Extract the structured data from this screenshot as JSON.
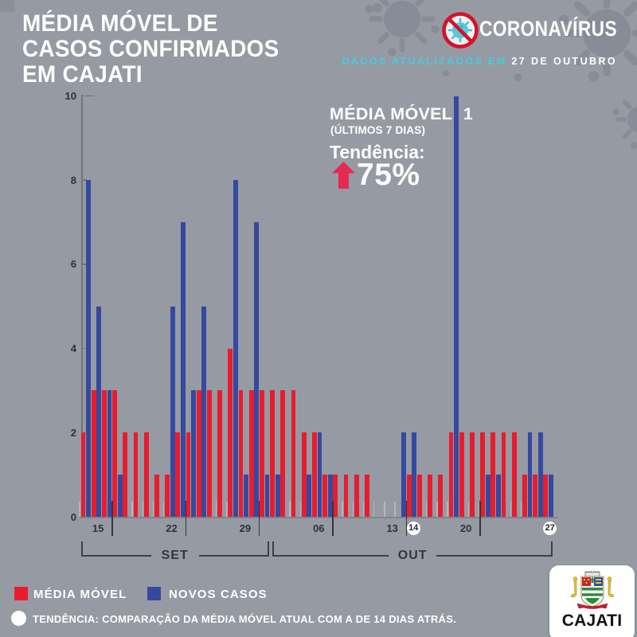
{
  "header": {
    "title_lines": [
      "MÉDIA MÓVEL DE",
      "CASOS CONFIRMADOS",
      "EM CAJATI"
    ],
    "brand": "CORONAVÍRUS",
    "update_prefix": "DADOS ATUALIZADOS EM ",
    "update_date": "27 DE OUTUBRO"
  },
  "stats": {
    "mm_label": "MÉDIA MÓVEL: 1",
    "mm_sub": "(ÚLTIMOS 7 DIAS)",
    "trend_label": "Tendência:",
    "trend_value": "75%",
    "trend_direction": "up"
  },
  "legend": {
    "items": [
      {
        "label": "MÉDIA MÓVEL",
        "color": "#e81c2e"
      },
      {
        "label": "NOVOS CASOS",
        "color": "#35499e"
      }
    ]
  },
  "note": "TENDÊNCIA: COMPARAÇÃO DA MÉDIA MÓVEL ATUAL COM A DE 14 DIAS ATRÁS.",
  "footer_logo": "CAJATI",
  "colors": {
    "background": "#969aa3",
    "media_movel": "#e81c2e",
    "novos_casos": "#35499e",
    "trend_arrow": "#e72850",
    "accent_cyan": "#49cade",
    "nosign_red": "#d6122a"
  },
  "chart_data": {
    "type": "bar",
    "title": "MÉDIA MÓVEL DE CASOS CONFIRMADOS EM CAJATI",
    "ylim": [
      0,
      10
    ],
    "y_ticks": [
      0,
      2,
      4,
      6,
      8,
      10
    ],
    "grid": false,
    "legend_position": "bottom",
    "series": [
      {
        "name": "MÉDIA MÓVEL",
        "color": "#e81c2e",
        "values": [
          2,
          3,
          3,
          3,
          2,
          2,
          2,
          1,
          1,
          2,
          2,
          3,
          3,
          3,
          4,
          3,
          3,
          3,
          3,
          3,
          3,
          2,
          2,
          1,
          1,
          1,
          1,
          1,
          0,
          0,
          0,
          1,
          1,
          1,
          1,
          2,
          2,
          2,
          2,
          2,
          2,
          2,
          1,
          1,
          1
        ]
      },
      {
        "name": "NOVOS CASOS",
        "color": "#35499e",
        "values": [
          8,
          5,
          3,
          1,
          0,
          0,
          0,
          0,
          5,
          7,
          3,
          5,
          0,
          0,
          8,
          1,
          7,
          1,
          1,
          0,
          0,
          1,
          2,
          1,
          0,
          0,
          0,
          0,
          0,
          0,
          2,
          2,
          0,
          0,
          0,
          10,
          0,
          0,
          1,
          1,
          0,
          0,
          2,
          2,
          1
        ]
      }
    ],
    "x_ticks": [
      {
        "label": "15",
        "day": 2,
        "style": "line"
      },
      {
        "label": "22",
        "day": 9,
        "style": "line"
      },
      {
        "label": "29",
        "day": 16,
        "style": "line"
      },
      {
        "label": "06",
        "day": 23,
        "style": "line"
      },
      {
        "label": "13",
        "day": 30,
        "style": "line"
      },
      {
        "label": "14",
        "day": 31,
        "style": "circle"
      },
      {
        "label": "20",
        "day": 37,
        "style": "line"
      },
      {
        "label": "27",
        "day": 44,
        "style": "circle"
      }
    ],
    "months": [
      {
        "label": "SET",
        "from": 0,
        "to": 17
      },
      {
        "label": "OUT",
        "from": 18,
        "to": 44
      }
    ]
  }
}
